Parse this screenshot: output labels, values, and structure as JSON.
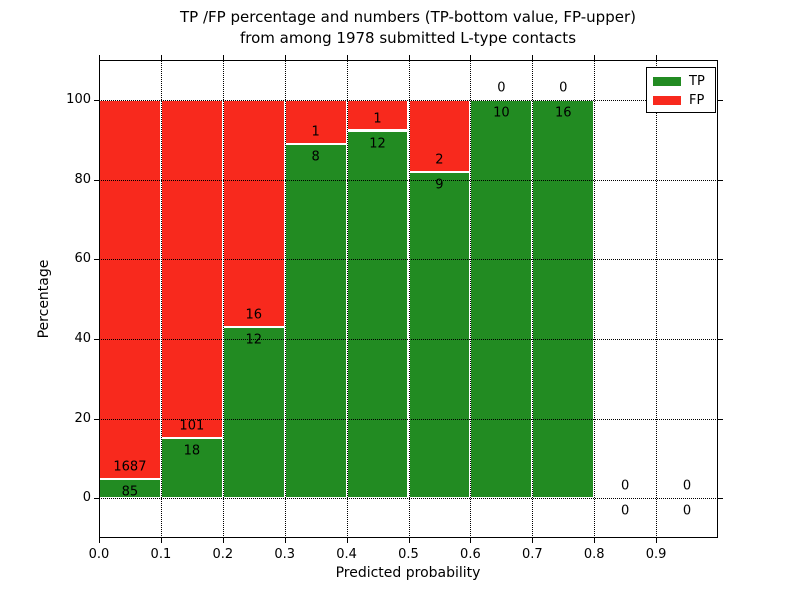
{
  "title": {
    "line1": "TP /FP percentage and numbers (TP-bottom value, FP-upper)",
    "line2": "from among 1978 submitted L-type contacts"
  },
  "colors": {
    "tp": "#228b22",
    "fp": "#f8291d",
    "axis": "#000000",
    "grid": "#000000",
    "bar_edge": "#ffffff",
    "background": "#ffffff",
    "text": "#000000"
  },
  "legend": {
    "items": [
      {
        "label": "TP",
        "color_key": "tp"
      },
      {
        "label": "FP",
        "color_key": "fp"
      }
    ],
    "position": "upper right"
  },
  "chart_data": {
    "type": "bar",
    "stacked": true,
    "title": "TP /FP percentage and numbers (TP-bottom value, FP-upper)\nfrom among 1978 submitted L-type contacts",
    "xlabel": "Predicted probability",
    "ylabel": "Percentage",
    "xlim": [
      0,
      1.0
    ],
    "ylim": [
      -10,
      110
    ],
    "grid": "dotted",
    "total_contacts": 1978,
    "series_names": [
      "TP",
      "FP"
    ],
    "xticks": [
      {
        "value": 0.0,
        "label": "0.0"
      },
      {
        "value": 0.1,
        "label": "0.1"
      },
      {
        "value": 0.2,
        "label": "0.2"
      },
      {
        "value": 0.3,
        "label": "0.3"
      },
      {
        "value": 0.4,
        "label": "0.4"
      },
      {
        "value": 0.5,
        "label": "0.5"
      },
      {
        "value": 0.6,
        "label": "0.6"
      },
      {
        "value": 0.7,
        "label": "0.7"
      },
      {
        "value": 0.8,
        "label": "0.8"
      },
      {
        "value": 0.9,
        "label": "0.9"
      }
    ],
    "yticks": [
      {
        "value": 0,
        "label": "0"
      },
      {
        "value": 20,
        "label": "20"
      },
      {
        "value": 40,
        "label": "40"
      },
      {
        "value": 60,
        "label": "60"
      },
      {
        "value": 80,
        "label": "80"
      },
      {
        "value": 100,
        "label": "100"
      }
    ],
    "bins": [
      {
        "range": "0.0-0.1",
        "x_start": 0.0,
        "x_end": 0.1,
        "center": 0.05,
        "tp": 85,
        "fp": 1687,
        "tp_pct": 4.8,
        "fp_pct": 95.2
      },
      {
        "range": "0.1-0.2",
        "x_start": 0.1,
        "x_end": 0.2,
        "center": 0.15,
        "tp": 18,
        "fp": 101,
        "tp_pct": 15.1,
        "fp_pct": 84.9
      },
      {
        "range": "0.2-0.3",
        "x_start": 0.2,
        "x_end": 0.3,
        "center": 0.25,
        "tp": 12,
        "fp": 16,
        "tp_pct": 42.9,
        "fp_pct": 57.1
      },
      {
        "range": "0.3-0.4",
        "x_start": 0.3,
        "x_end": 0.4,
        "center": 0.35,
        "tp": 8,
        "fp": 1,
        "tp_pct": 88.9,
        "fp_pct": 11.1
      },
      {
        "range": "0.4-0.5",
        "x_start": 0.4,
        "x_end": 0.5,
        "center": 0.45,
        "tp": 12,
        "fp": 1,
        "tp_pct": 92.3,
        "fp_pct": 7.7
      },
      {
        "range": "0.5-0.6",
        "x_start": 0.5,
        "x_end": 0.6,
        "center": 0.55,
        "tp": 9,
        "fp": 2,
        "tp_pct": 81.8,
        "fp_pct": 18.2
      },
      {
        "range": "0.6-0.7",
        "x_start": 0.6,
        "x_end": 0.7,
        "center": 0.65,
        "tp": 10,
        "fp": 0,
        "tp_pct": 100,
        "fp_pct": 0
      },
      {
        "range": "0.7-0.8",
        "x_start": 0.7,
        "x_end": 0.8,
        "center": 0.75,
        "tp": 16,
        "fp": 0,
        "tp_pct": 100,
        "fp_pct": 0
      },
      {
        "range": "0.8-0.9",
        "x_start": 0.8,
        "x_end": 0.9,
        "center": 0.85,
        "tp": 0,
        "fp": 0,
        "tp_pct": 0,
        "fp_pct": 0
      },
      {
        "range": "0.9-1.0",
        "x_start": 0.9,
        "x_end": 1.0,
        "center": 0.95,
        "tp": 0,
        "fp": 0,
        "tp_pct": 0,
        "fp_pct": 0
      }
    ]
  }
}
